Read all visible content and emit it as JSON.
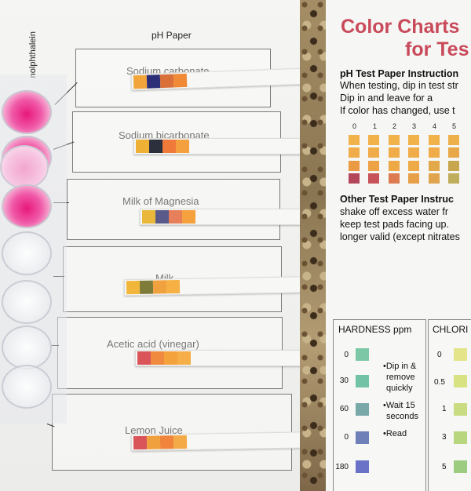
{
  "worksheet": {
    "ph_paper_title": "pH Paper",
    "vertical_label": "nolphthalein",
    "samples": [
      {
        "label": "Sodium carbonate",
        "pads": [
          "#f0a43a",
          "#2c2f78",
          "#d9703a",
          "#f08a36"
        ]
      },
      {
        "label": "Sodium bicarbonate",
        "pads": [
          "#efb036",
          "#2c2f3c",
          "#f07a3a",
          "#f5a03e"
        ]
      },
      {
        "label": "Milk of Magnesia",
        "pads": [
          "#e9b83a",
          "#5a5a8a",
          "#e7805a",
          "#f5a23e"
        ]
      },
      {
        "label": "Milk",
        "pads": [
          "#f2b73a",
          "#7f7c3a",
          "#f1a23e",
          "#f6b044"
        ]
      },
      {
        "label": "Acetic acid (vinegar)",
        "pads": [
          "#d9555a",
          "#ef8a3e",
          "#f4a23c",
          "#f5ae48"
        ]
      },
      {
        "label": "Lemon Juice",
        "pads": [
          "#d9555a",
          "#f0a03c",
          "#f0843a",
          "#f5aa48"
        ]
      }
    ],
    "wells": [
      "pink",
      "pink",
      "lightpink",
      "pink",
      "clear",
      "clear",
      "clear",
      "clear",
      "clear"
    ]
  },
  "color_chart": {
    "title_line1": "Color Charts",
    "title_line2": "for Tes",
    "ph_section": {
      "heading": "pH Test Paper Instruction",
      "lines": [
        "When testing, dip in test str",
        "Dip in and leave for a",
        "If color has changed, use t"
      ],
      "scale": [
        "0",
        "1",
        "2",
        "3",
        "4",
        "5"
      ],
      "swatch_rows": [
        [
          "#f2b24a",
          "#f2b24a",
          "#f2b24a",
          "#f2b24a",
          "#f2b24a",
          "#eeb04a",
          "#e8ad4a"
        ],
        [
          "#f0ac48",
          "#f0ac48",
          "#f0ac48",
          "#f0ac48",
          "#f0ac48",
          "#e8a848",
          "#d0a44a"
        ],
        [
          "#ea9a42",
          "#eea246",
          "#eea846",
          "#eeaa46",
          "#e3a84a",
          "#c7a64e",
          "#a8a458"
        ],
        [
          "#b4465a",
          "#c8525a",
          "#de7a50",
          "#e8a048",
          "#e0a44e",
          "#bfae5c",
          "#8f9e62"
        ]
      ]
    },
    "other_section": {
      "heading": "Other Test Paper Instruc",
      "lines": [
        "shake off excess water fr",
        "keep test pads facing up.",
        "longer valid (except nitrates"
      ]
    },
    "hardness": {
      "heading": "HARDNESS ppm",
      "levels": [
        "0",
        "30",
        "60",
        "0",
        "180"
      ],
      "colors": [
        "#7cc7a6",
        "#72c2a6",
        "#78a8a8",
        "#6f7fb8",
        "#6a72c8"
      ],
      "notes": [
        "•Dip in &",
        "remove",
        "quickly",
        "•Wait 15",
        "seconds",
        "•Read"
      ]
    },
    "chlorine": {
      "heading": "CHLORI",
      "levels": [
        "0",
        "0.5",
        "1",
        "3",
        "5"
      ],
      "colors": [
        "#e4e48a",
        "#d8e282",
        "#c9dc82",
        "#b8d67e",
        "#9ccc80"
      ]
    }
  }
}
